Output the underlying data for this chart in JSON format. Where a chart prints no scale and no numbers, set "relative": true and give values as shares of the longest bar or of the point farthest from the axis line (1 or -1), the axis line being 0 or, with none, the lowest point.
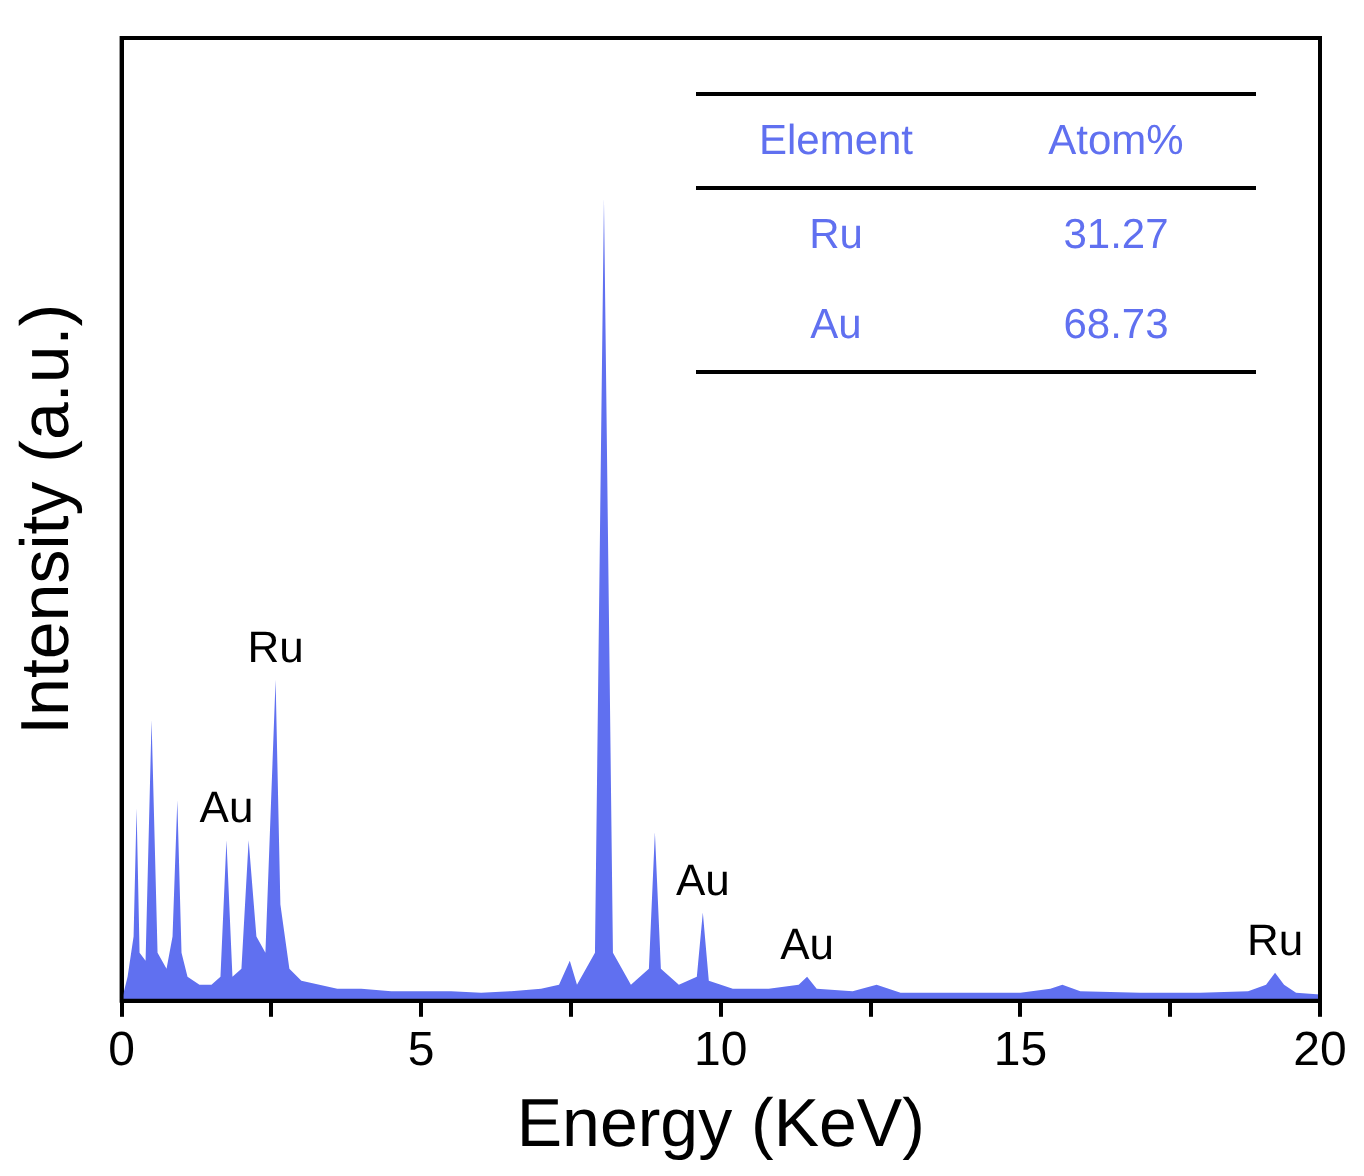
{
  "chart_data": {
    "type": "area",
    "relative": true,
    "xlabel": "Energy (KeV)",
    "ylabel": "Intensity (a.u.)",
    "xlim": [
      0,
      20
    ],
    "xticks": [
      0,
      {
        "value": 2.5,
        "label": null
      },
      5,
      {
        "value": 7.5,
        "label": null
      },
      10,
      {
        "value": 12.5,
        "label": null
      },
      15,
      {
        "value": 17.5,
        "label": null
      },
      20
    ],
    "tick_labels": "x",
    "series": [
      {
        "color": "#6070f0",
        "x": [
          0,
          0.1,
          0.2,
          0.25,
          0.3,
          0.4,
          0.5,
          0.6,
          0.75,
          0.85,
          0.93,
          1.0,
          1.1,
          1.3,
          1.5,
          1.65,
          1.75,
          1.85,
          2.0,
          2.12,
          2.25,
          2.4,
          2.57,
          2.65,
          2.8,
          3.0,
          3.3,
          3.6,
          4.0,
          4.5,
          5,
          5.5,
          6,
          6.5,
          7,
          7.3,
          7.48,
          7.6,
          7.9,
          8.05,
          8.2,
          8.5,
          8.8,
          8.9,
          9.0,
          9.3,
          9.6,
          9.7,
          9.8,
          10.2,
          10.8,
          11.3,
          11.44,
          11.6,
          12.2,
          12.6,
          13,
          14,
          15,
          15.5,
          15.7,
          16,
          17,
          18,
          18.8,
          19.1,
          19.25,
          19.4,
          19.6,
          20
        ],
        "values": [
          0,
          0.03,
          0.08,
          0.24,
          0.06,
          0.05,
          0.35,
          0.06,
          0.04,
          0.08,
          0.25,
          0.06,
          0.03,
          0.02,
          0.02,
          0.03,
          0.2,
          0.03,
          0.04,
          0.2,
          0.08,
          0.06,
          0.4,
          0.12,
          0.04,
          0.025,
          0.02,
          0.015,
          0.015,
          0.012,
          0.012,
          0.012,
          0.01,
          0.012,
          0.015,
          0.02,
          0.05,
          0.02,
          0.06,
          1,
          0.06,
          0.02,
          0.04,
          0.21,
          0.04,
          0.02,
          0.03,
          0.11,
          0.025,
          0.015,
          0.015,
          0.02,
          0.03,
          0.015,
          0.012,
          0.02,
          0.01,
          0.01,
          0.01,
          0.015,
          0.02,
          0.012,
          0.01,
          0.01,
          0.012,
          0.02,
          0.035,
          0.02,
          0.01,
          0.008
        ]
      }
    ],
    "annotations": [
      {
        "text": "Ru",
        "x": 2.57,
        "y": 0.4
      },
      {
        "text": "Au",
        "x": 1.75,
        "y": 0.2
      },
      {
        "text": "Au",
        "x": 9.7,
        "y": 0.11
      },
      {
        "text": "Au",
        "x": 11.44,
        "y": 0.03
      },
      {
        "text": "Ru",
        "x": 19.25,
        "y": 0.035
      },
      "Element",
      "Atom%",
      "Ru",
      "31.27",
      "Au",
      "68.73"
    ]
  }
}
